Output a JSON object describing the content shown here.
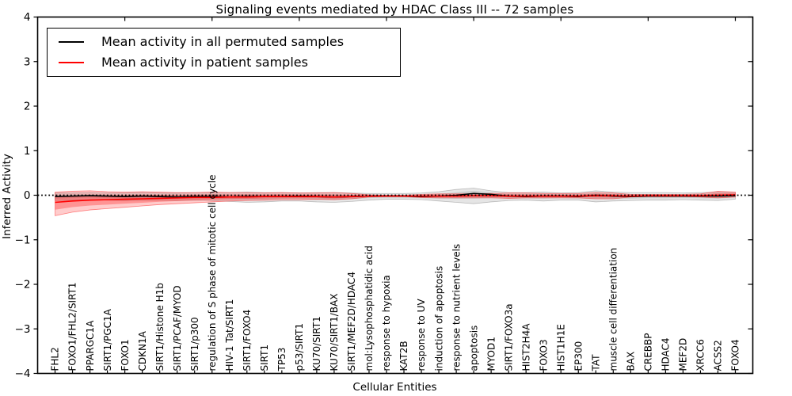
{
  "chart_data": {
    "type": "line",
    "title": "Signaling events mediated by HDAC Class III -- 72 samples",
    "xlabel": "Cellular Entities",
    "ylabel": "Inferred Activity",
    "ylim": [
      -4,
      4
    ],
    "yticks": [
      4,
      3,
      2,
      1,
      0,
      -1,
      -2,
      -3,
      -4
    ],
    "grid": false,
    "legend_position": "upper left",
    "categories": [
      "FHL2",
      "FOXO1/FHL2/SIRT1",
      "PPARGC1A",
      "SIRT1/PGC1A",
      "FOXO1",
      "CDKN1A",
      "SIRT1/Histone H1b",
      "SIRT1/PCAF/MYOD",
      "SIRT1/p300",
      "regulation of S phase of mitotic cell cycle",
      "HIV-1 Tat/SIRT1",
      "SIRT1/FOXO4",
      "SIRT1",
      "TP53",
      "p53/SIRT1",
      "KU70/SIRT1",
      "KU70/SIRT1/BAX",
      "SIRT1/MEF2D/HDAC4",
      "mol:Lysophosphatidic acid",
      "response to hypoxia",
      "KAT2B",
      "response to UV",
      "induction of apoptosis",
      "response to nutrient levels",
      "apoptosis",
      "MYOD1",
      "SIRT1/FOXO3a",
      "HIST2H4A",
      "FOXO3",
      "HIST1H1E",
      "EP300",
      "TAT",
      "muscle cell differentiation",
      "BAX",
      "CREBBP",
      "HDAC4",
      "MEF2D",
      "XRCC6",
      "ACSS2",
      "FOXO4"
    ],
    "series": [
      {
        "name": "Mean activity in all permuted samples",
        "color": "#000000",
        "values": [
          -0.03,
          -0.02,
          -0.01,
          -0.02,
          -0.03,
          -0.02,
          -0.03,
          -0.04,
          -0.03,
          -0.03,
          -0.04,
          -0.03,
          -0.03,
          -0.03,
          -0.02,
          -0.03,
          -0.04,
          -0.03,
          -0.02,
          -0.02,
          -0.02,
          -0.03,
          -0.02,
          0.0,
          0.04,
          0.02,
          -0.02,
          -0.03,
          -0.02,
          -0.02,
          -0.03,
          0.0,
          -0.02,
          -0.03,
          -0.02,
          -0.02,
          -0.02,
          -0.02,
          -0.02,
          -0.01
        ]
      },
      {
        "name": "Mean activity in patient samples",
        "color": "#ff0000",
        "values": [
          -0.16,
          -0.13,
          -0.11,
          -0.1,
          -0.09,
          -0.08,
          -0.07,
          -0.06,
          -0.05,
          -0.05,
          -0.04,
          -0.04,
          -0.03,
          -0.03,
          -0.03,
          -0.03,
          -0.04,
          -0.03,
          -0.02,
          -0.02,
          -0.02,
          -0.02,
          -0.02,
          -0.02,
          -0.01,
          -0.01,
          -0.02,
          -0.02,
          -0.02,
          -0.02,
          -0.02,
          -0.01,
          -0.01,
          -0.02,
          -0.01,
          -0.01,
          -0.01,
          -0.01,
          0.0,
          0.01
        ]
      }
    ],
    "bands": [
      {
        "name": "permuted samples range",
        "color": "#000000",
        "lo": [
          -0.12,
          -0.11,
          -0.1,
          -0.11,
          -0.12,
          -0.11,
          -0.11,
          -0.12,
          -0.11,
          -0.12,
          -0.14,
          -0.16,
          -0.15,
          -0.13,
          -0.13,
          -0.15,
          -0.16,
          -0.14,
          -0.11,
          -0.09,
          -0.09,
          -0.1,
          -0.13,
          -0.16,
          -0.19,
          -0.15,
          -0.12,
          -0.11,
          -0.13,
          -0.11,
          -0.11,
          -0.15,
          -0.13,
          -0.12,
          -0.11,
          -0.11,
          -0.1,
          -0.11,
          -0.12,
          -0.09
        ],
        "hi": [
          0.05,
          0.05,
          0.06,
          0.05,
          0.05,
          0.06,
          0.05,
          0.05,
          0.06,
          0.06,
          0.06,
          0.07,
          0.06,
          0.06,
          0.05,
          0.06,
          0.06,
          0.05,
          0.04,
          0.04,
          0.04,
          0.05,
          0.08,
          0.13,
          0.16,
          0.1,
          0.06,
          0.06,
          0.07,
          0.05,
          0.06,
          0.1,
          0.07,
          0.06,
          0.06,
          0.06,
          0.05,
          0.06,
          0.07,
          0.06
        ]
      },
      {
        "name": "patient samples range",
        "color": "#ff0000",
        "lo": [
          -0.46,
          -0.38,
          -0.33,
          -0.3,
          -0.27,
          -0.24,
          -0.21,
          -0.19,
          -0.17,
          -0.15,
          -0.13,
          -0.12,
          -0.11,
          -0.1,
          -0.1,
          -0.09,
          -0.1,
          -0.08,
          -0.04,
          -0.03,
          -0.03,
          -0.05,
          -0.06,
          -0.06,
          -0.06,
          -0.06,
          -0.07,
          -0.06,
          -0.06,
          -0.06,
          -0.06,
          -0.08,
          -0.08,
          -0.04,
          -0.03,
          -0.03,
          -0.03,
          -0.04,
          -0.06,
          -0.04
        ],
        "hi": [
          0.07,
          0.09,
          0.1,
          0.08,
          0.07,
          0.08,
          0.07,
          0.06,
          0.06,
          0.07,
          0.06,
          0.06,
          0.05,
          0.06,
          0.05,
          0.05,
          0.06,
          0.04,
          0.01,
          0.0,
          0.0,
          0.02,
          0.03,
          0.03,
          0.03,
          0.04,
          0.05,
          0.05,
          0.04,
          0.04,
          0.04,
          0.06,
          0.05,
          0.02,
          0.02,
          0.02,
          0.02,
          0.03,
          0.09,
          0.07
        ]
      }
    ],
    "zero_line": {
      "y": 0,
      "style": "dotted",
      "color": "#000000"
    }
  }
}
